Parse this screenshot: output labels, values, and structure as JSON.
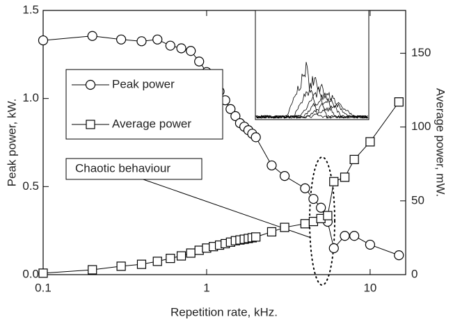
{
  "chart_data": {
    "type": "line",
    "xscale": "log",
    "xlabel": "Repetition rate, kHz.",
    "ylabel": "Peak power, kW.",
    "y2label": "Average power, mW.",
    "annotation": "Chaotic behaviour",
    "legend": "upper left",
    "x": [
      0.1,
      0.2,
      0.3,
      0.4,
      0.5,
      0.6,
      0.7,
      0.8,
      0.9,
      1.0,
      1.1,
      1.2,
      1.3,
      1.4,
      1.5,
      1.6,
      1.7,
      1.8,
      1.9,
      2.0,
      2.5,
      3,
      4,
      4.5,
      5,
      5.5,
      6,
      7,
      8,
      10,
      15
    ],
    "series": [
      {
        "name": "Peak power",
        "color": "#000000",
        "marker": "circle",
        "values": [
          1.33,
          1.355,
          1.335,
          1.325,
          1.335,
          1.3,
          1.285,
          1.27,
          1.21,
          1.15,
          1.1,
          1.04,
          0.99,
          0.94,
          0.9,
          0.86,
          0.84,
          0.82,
          0.8,
          0.78,
          0.62,
          0.56,
          0.49,
          0.43,
          0.38,
          0.3,
          0.15,
          0.22,
          0.22,
          0.17,
          0.11
        ]
      },
      {
        "name": "Average power",
        "color": "#000000",
        "marker": "square",
        "axis": "y2",
        "values": [
          1,
          3.3,
          5.7,
          7,
          9,
          11,
          12.7,
          14.6,
          16.5,
          18,
          19,
          20,
          21,
          22,
          23,
          23.5,
          24,
          24.5,
          25,
          25.5,
          29,
          32,
          34.5,
          36,
          38,
          40,
          63,
          66,
          78,
          90,
          117
        ]
      }
    ],
    "xlim": [
      0.1,
      16.5
    ],
    "xticks": [
      0.1,
      1,
      10
    ],
    "ylim": [
      0,
      1.5
    ],
    "yticks": [
      {
        "value": 0,
        "label": "0.0"
      },
      0.5,
      {
        "value": 1,
        "label": "1.0"
      },
      1.5
    ],
    "y2lim": [
      0,
      179
    ],
    "y2ticks": [
      0,
      50,
      100,
      150
    ]
  }
}
